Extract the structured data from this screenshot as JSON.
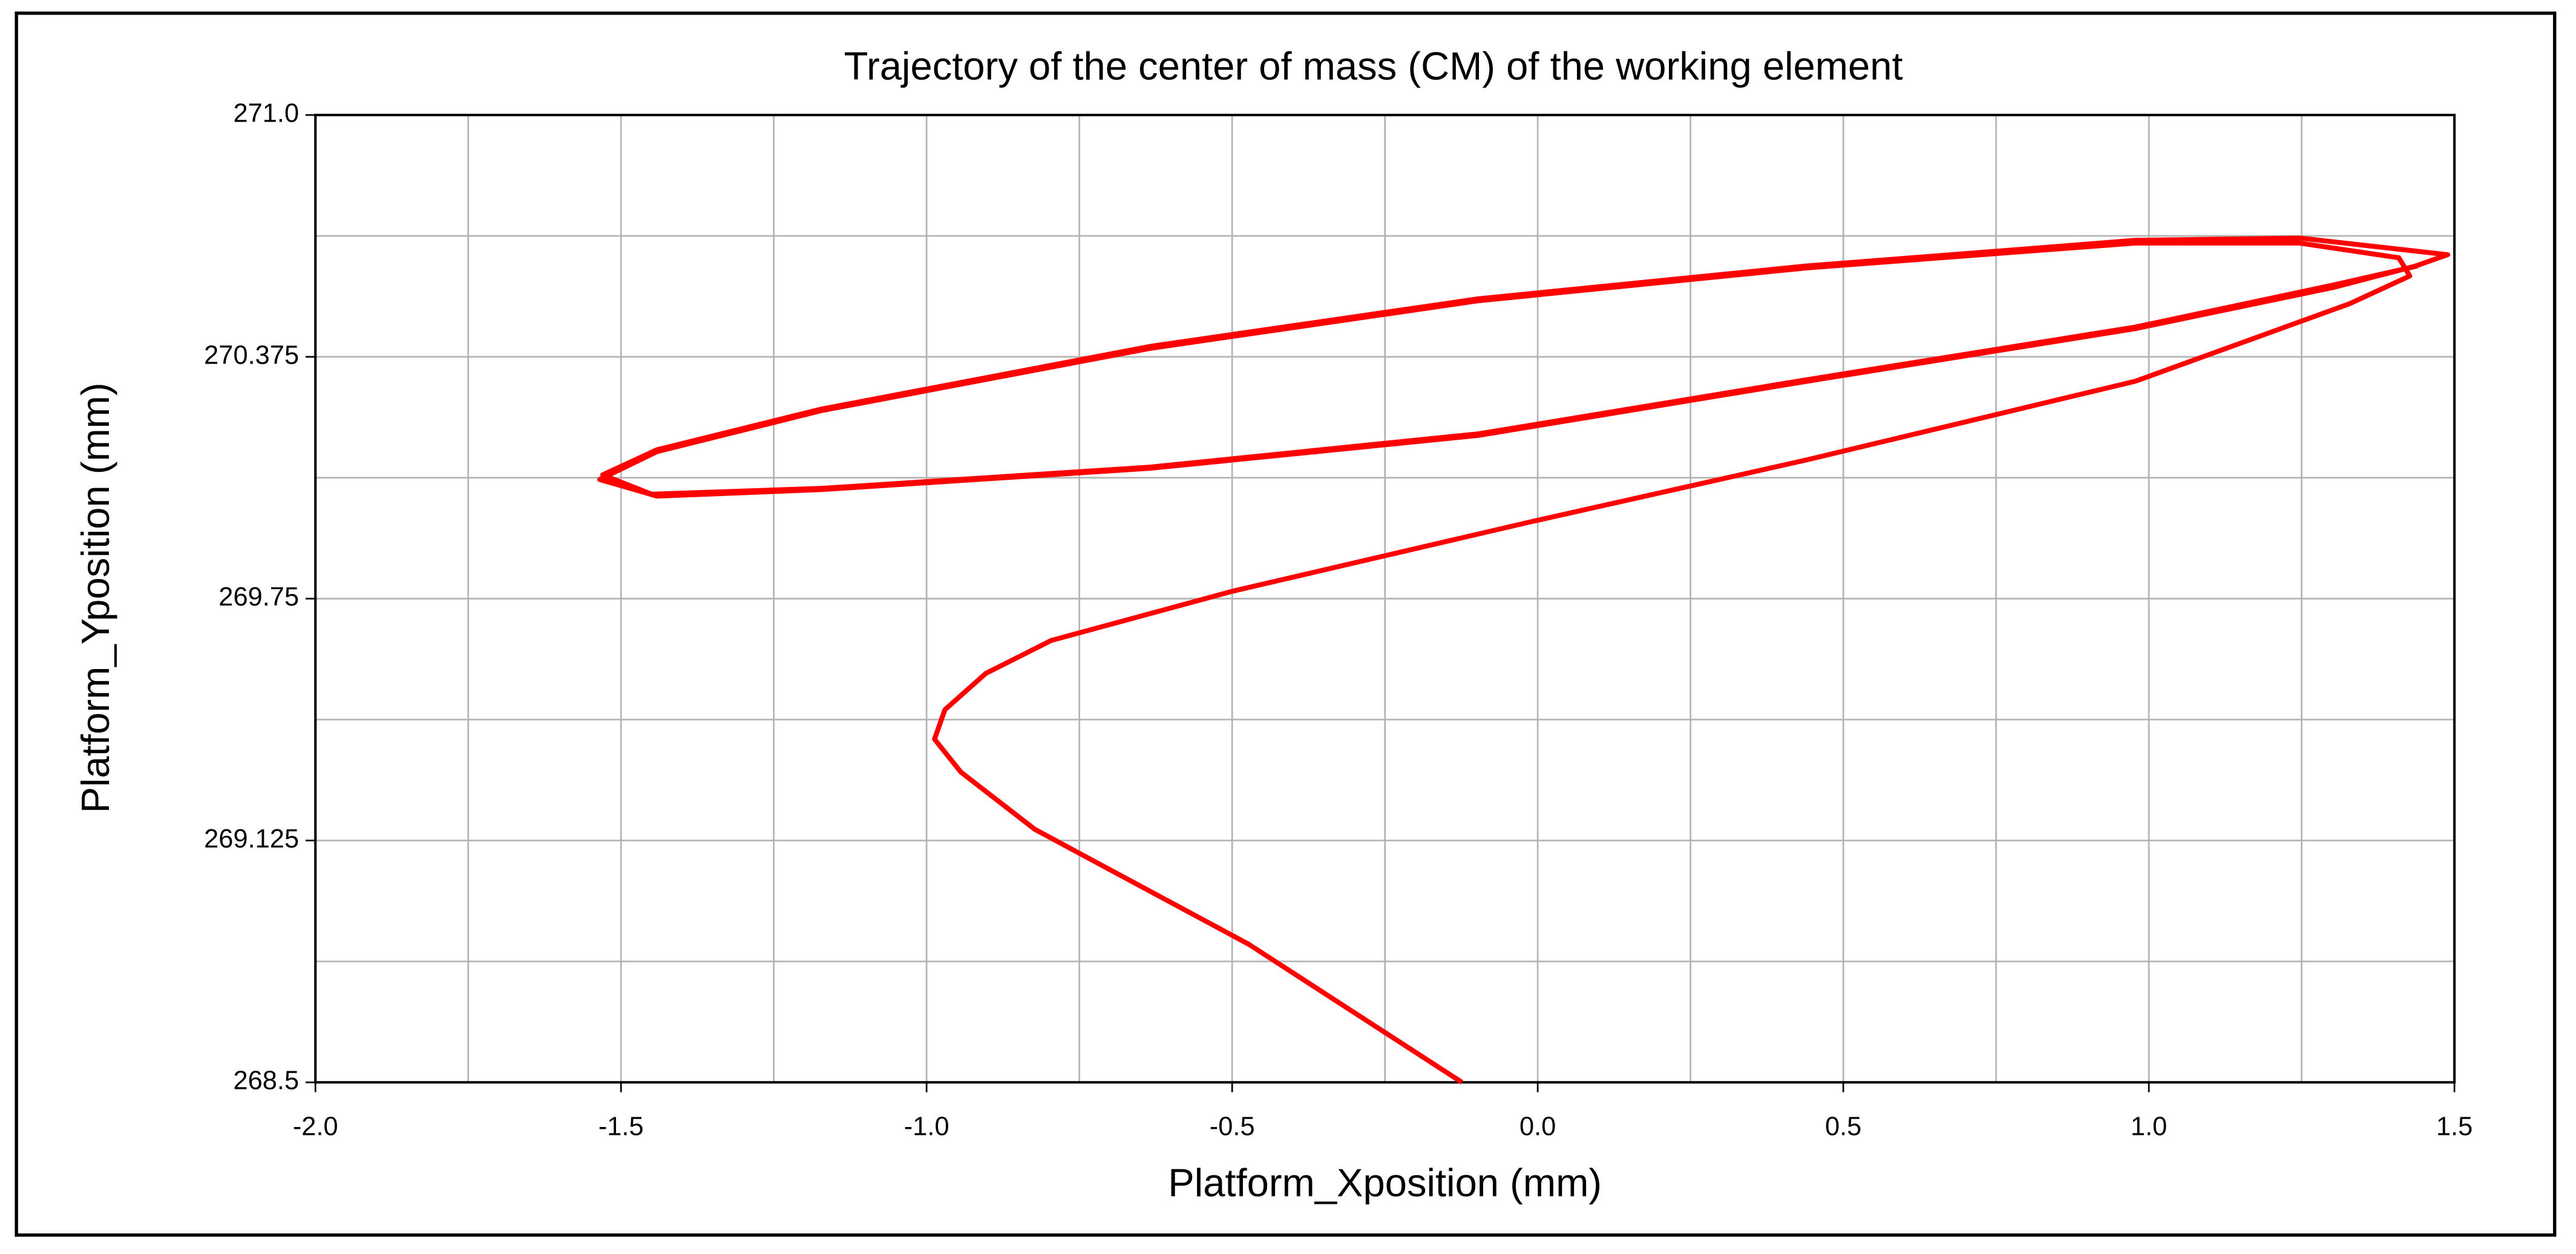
{
  "chart_data": {
    "type": "line",
    "title": "Trajectory of the center of mass (CM) of the working element",
    "x_label": "Platform_Xposition (mm)",
    "y_label": "Platform_Yposition (mm)",
    "xlim": [
      -2.0,
      1.5
    ],
    "ylim": [
      268.5,
      271.0
    ],
    "xticks": [
      {
        "value": -2.0,
        "label": "-2.0"
      },
      -1.5,
      {
        "value": -1.0,
        "label": "-1.0"
      },
      -0.5,
      {
        "value": 0.0,
        "label": "0.0"
      },
      0.5,
      {
        "value": 1.0,
        "label": "1.0"
      },
      1.5
    ],
    "yticks": [
      268.5,
      269.125,
      269.75,
      270.375,
      {
        "value": 271.0,
        "label": "271.0"
      }
    ],
    "xgrid": [
      -1.75,
      -1.25,
      -0.75,
      -0.25,
      0.25,
      0.75,
      1.25
    ],
    "ygrid": [
      268.8125,
      269.4375,
      270.0625,
      270.6875
    ],
    "grid": true,
    "series": [
      {
        "color": "#ff0000",
        "x": [
          -0.124,
          -0.473,
          -0.823,
          -0.944,
          -0.987,
          -0.97,
          -0.903,
          -0.796,
          -0.5,
          -0.016,
          0.441,
          0.978,
          1.328,
          1.427,
          1.409,
          1.247,
          0.978,
          0.441,
          -0.097,
          -0.634,
          -1.172,
          -1.441,
          -1.535,
          -1.441,
          -1.172,
          -0.634,
          -0.097,
          0.441,
          0.978,
          1.301,
          1.435,
          1.489,
          1.247,
          0.978,
          0.441,
          -0.097,
          -0.634,
          -1.172,
          -1.441,
          -1.53,
          -1.45,
          -1.172,
          -0.634,
          -0.097,
          0.441,
          0.978,
          1.3,
          1.44
        ],
        "values": [
          268.5,
          268.857,
          269.154,
          269.302,
          269.387,
          269.463,
          269.557,
          269.642,
          269.769,
          269.947,
          270.109,
          270.312,
          270.512,
          270.584,
          270.631,
          270.669,
          270.669,
          270.605,
          270.52,
          270.397,
          270.236,
          270.13,
          270.058,
          270.015,
          270.032,
          270.087,
          270.172,
          270.312,
          270.448,
          270.554,
          270.609,
          270.639,
          270.682,
          270.676,
          270.61,
          270.525,
          270.402,
          270.24,
          270.135,
          270.07,
          270.02,
          270.035,
          270.09,
          270.176,
          270.316,
          270.452,
          270.56,
          270.61
        ]
      }
    ]
  }
}
